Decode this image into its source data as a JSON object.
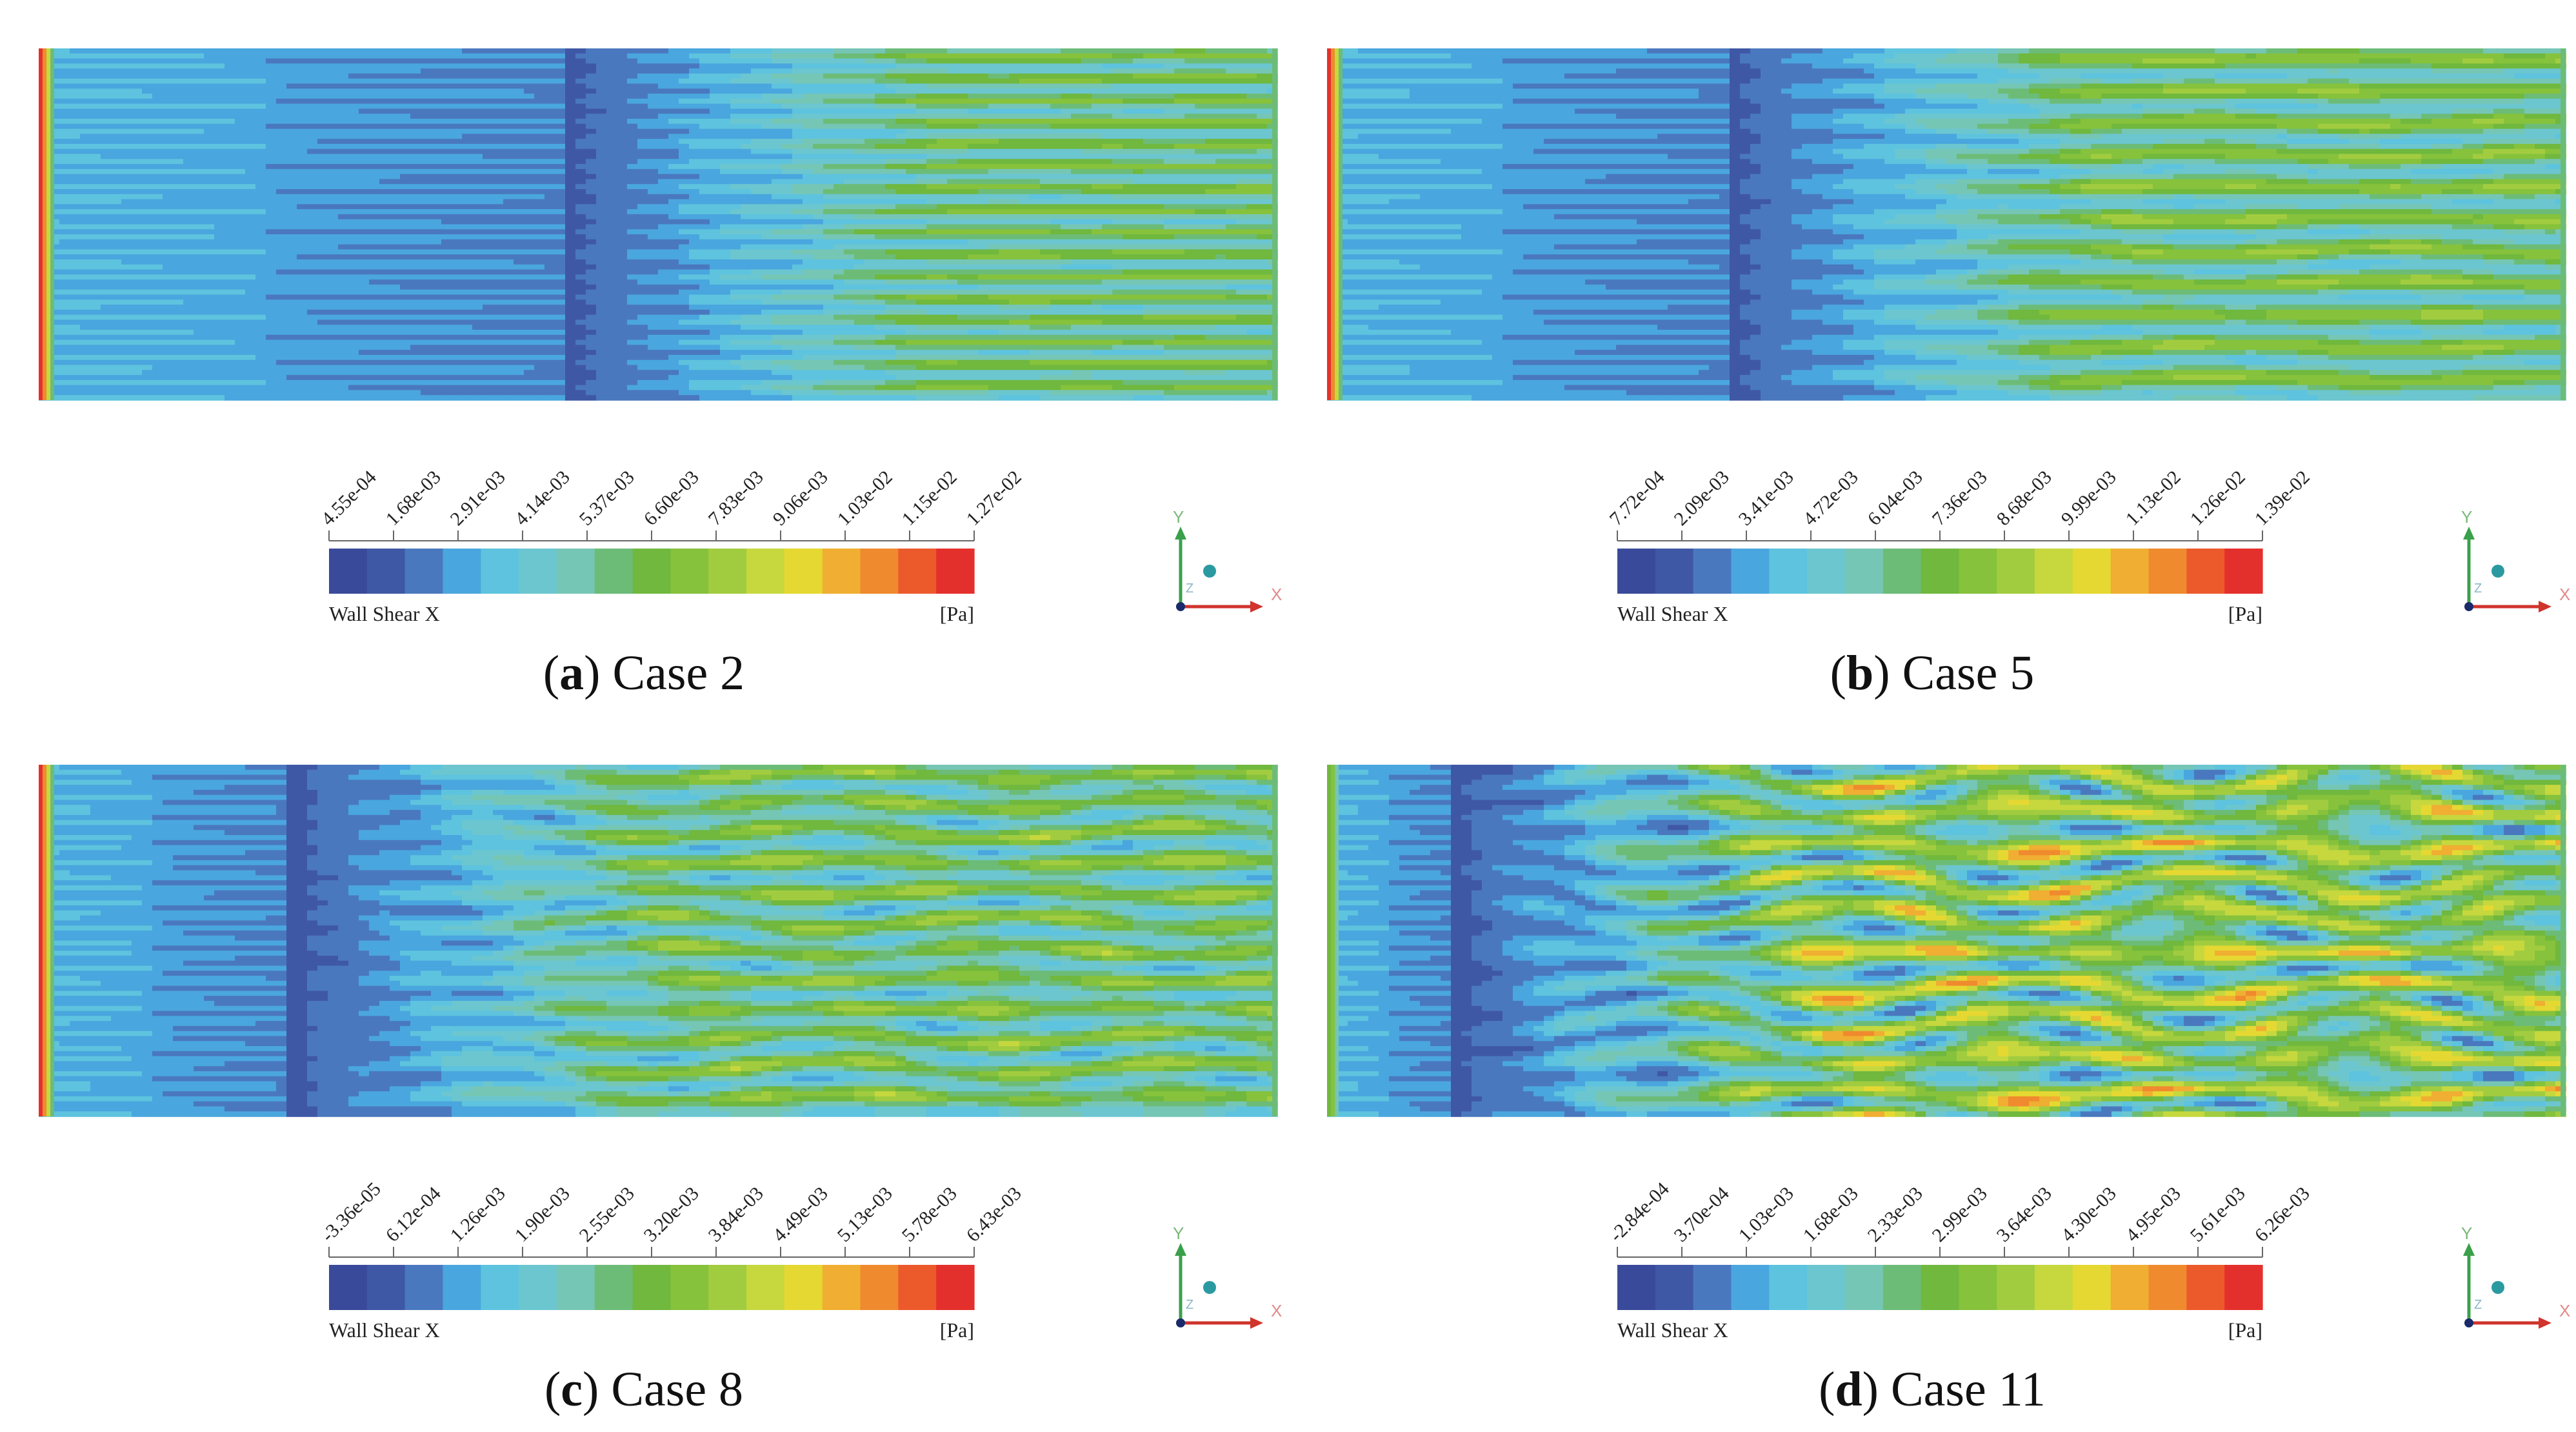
{
  "colors": {
    "scale": [
      "#3a4a9a",
      "#3f58a6",
      "#4a78be",
      "#4aa6de",
      "#5ec3de",
      "#6bc6d0",
      "#76c6b6",
      "#6cbc78",
      "#70b83e",
      "#86c23c",
      "#a2cc40",
      "#c6d83e",
      "#e6d832",
      "#f0ae32",
      "#f08a2e",
      "#ec5a2c",
      "#e4302c"
    ],
    "axis_x": "#d0342c",
    "axis_y": "#3aa04a",
    "axis_z": "#2a9aa0"
  },
  "panels": [
    {
      "letter": "a",
      "title": " Case 2",
      "legend": {
        "ticks": [
          "4.55e-04",
          "1.68e-03",
          "2.91e-03",
          "4.14e-03",
          "5.37e-03",
          "6.60e-03",
          "7.83e-03",
          "9.06e-03",
          "1.03e-02",
          "1.15e-02",
          "1.27e-02"
        ],
        "variable": "Wall Shear X",
        "unit": "[Pa]"
      },
      "axes": {
        "x": "X",
        "y": "Y",
        "z": "Z"
      },
      "field": {
        "stripe_count": 16,
        "transition_start": 0.42,
        "max_level": 0.55,
        "turbulence": 0.15
      }
    },
    {
      "letter": "b",
      "title": " Case 5",
      "legend": {
        "ticks": [
          "7.72e-04",
          "2.09e-03",
          "3.41e-03",
          "4.72e-03",
          "6.04e-03",
          "7.36e-03",
          "8.68e-03",
          "9.99e-03",
          "1.13e-02",
          "1.26e-02",
          "1.39e-02"
        ],
        "variable": "Wall Shear X",
        "unit": "[Pa]"
      },
      "axes": {
        "x": "X",
        "y": "Y",
        "z": "Z"
      },
      "field": {
        "stripe_count": 11,
        "transition_start": 0.32,
        "max_level": 0.58,
        "turbulence": 0.25
      }
    },
    {
      "letter": "c",
      "title": " Case 8",
      "legend": {
        "ticks": [
          "-3.36e-05",
          "6.12e-04",
          "1.26e-03",
          "1.90e-03",
          "2.55e-03",
          "3.20e-03",
          "3.84e-03",
          "4.49e-03",
          "5.13e-03",
          "5.78e-03",
          "6.43e-03"
        ],
        "variable": "Wall Shear X",
        "unit": "[Pa]"
      },
      "axes": {
        "x": "X",
        "y": "Y",
        "z": "Z"
      },
      "field": {
        "stripe_count": 12,
        "transition_start": 0.2,
        "max_level": 0.56,
        "turbulence": 0.55
      }
    },
    {
      "letter": "d",
      "title": " Case 11",
      "legend": {
        "ticks": [
          "-2.84e-04",
          "3.70e-04",
          "1.03e-03",
          "1.68e-03",
          "2.33e-03",
          "2.99e-03",
          "3.64e-03",
          "4.30e-03",
          "4.95e-03",
          "5.61e-03",
          "6.26e-03"
        ],
        "variable": "Wall Shear X",
        "unit": "[Pa]"
      },
      "axes": {
        "x": "X",
        "y": "Y",
        "z": "Z"
      },
      "field": {
        "stripe_count": 10,
        "transition_start": 0.1,
        "max_level": 0.68,
        "turbulence": 1.0
      }
    }
  ]
}
